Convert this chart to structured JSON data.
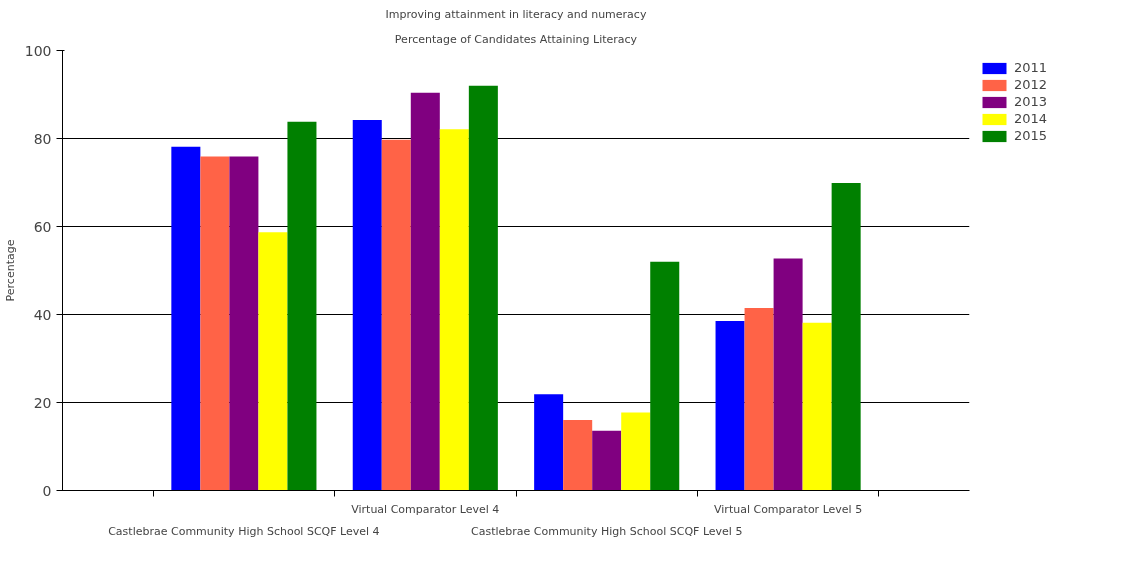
{
  "chart_data": {
    "type": "bar",
    "title": "Improving attainment in literacy and numeracy",
    "subtitle": "Percentage of Candidates Attaining Literacy",
    "ylabel": "Percentage",
    "categories": [
      "Castlebrae Community High School SCQF Level 4",
      "Virtual Comparator Level 4",
      "Castlebrae Community High School SCQF Level 5",
      "Virtual Comparator Level 5"
    ],
    "series": [
      {
        "name": "2011",
        "color": "#0000ff",
        "values": [
          78.1,
          84.2,
          21.9,
          38.5
        ]
      },
      {
        "name": "2012",
        "color": "#ff6347",
        "values": [
          75.9,
          79.7,
          16.0,
          41.5
        ]
      },
      {
        "name": "2013",
        "color": "#800080",
        "values": [
          75.9,
          90.4,
          13.6,
          52.7
        ]
      },
      {
        "name": "2014",
        "color": "#ffff00",
        "values": [
          58.7,
          82.1,
          17.7,
          38.1
        ]
      },
      {
        "name": "2015",
        "color": "#008000",
        "values": [
          83.8,
          92.0,
          52.0,
          69.9
        ]
      }
    ],
    "ylim": [
      0,
      100
    ],
    "yticks": [
      0,
      20,
      40,
      60,
      80,
      100
    ],
    "grid": "y",
    "legend": "top right"
  }
}
